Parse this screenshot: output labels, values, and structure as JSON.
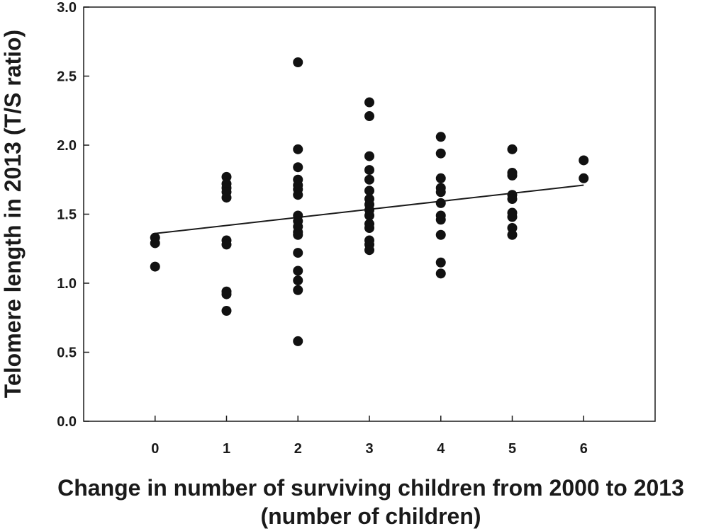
{
  "chart_data": {
    "type": "scatter",
    "title": "",
    "xlabel_line1": "Change in number of surviving children from 2000 to 2013",
    "xlabel_line2": "(number of children)",
    "ylabel": "Telomere length in 2013 (T/S ratio)",
    "xlim": [
      -1,
      7
    ],
    "ylim": [
      0.0,
      3.0
    ],
    "x_ticks": [
      0,
      1,
      2,
      3,
      4,
      5,
      6
    ],
    "x_tick_labels": [
      "0",
      "1",
      "2",
      "3",
      "4",
      "5",
      "6"
    ],
    "y_ticks": [
      0.0,
      0.5,
      1.0,
      1.5,
      2.0,
      2.5,
      3.0
    ],
    "y_tick_labels": [
      "0.0",
      "0.5",
      "1.0",
      "1.5",
      "2.0",
      "2.5",
      "3.0"
    ],
    "grid": false,
    "point_color": "#111111",
    "points": [
      {
        "x": 0,
        "y": 1.33
      },
      {
        "x": 0,
        "y": 1.29
      },
      {
        "x": 0,
        "y": 1.12
      },
      {
        "x": 1,
        "y": 1.77
      },
      {
        "x": 1,
        "y": 1.72
      },
      {
        "x": 1,
        "y": 1.69
      },
      {
        "x": 1,
        "y": 1.66
      },
      {
        "x": 1,
        "y": 1.62
      },
      {
        "x": 1,
        "y": 1.31
      },
      {
        "x": 1,
        "y": 1.28
      },
      {
        "x": 1,
        "y": 0.94
      },
      {
        "x": 1,
        "y": 0.92
      },
      {
        "x": 1,
        "y": 0.8
      },
      {
        "x": 2,
        "y": 2.6
      },
      {
        "x": 2,
        "y": 1.97
      },
      {
        "x": 2,
        "y": 1.84
      },
      {
        "x": 2,
        "y": 1.75
      },
      {
        "x": 2,
        "y": 1.71
      },
      {
        "x": 2,
        "y": 1.68
      },
      {
        "x": 2,
        "y": 1.64
      },
      {
        "x": 2,
        "y": 1.49
      },
      {
        "x": 2,
        "y": 1.45
      },
      {
        "x": 2,
        "y": 1.41
      },
      {
        "x": 2,
        "y": 1.37
      },
      {
        "x": 2,
        "y": 1.35
      },
      {
        "x": 2,
        "y": 1.22
      },
      {
        "x": 2,
        "y": 1.09
      },
      {
        "x": 2,
        "y": 1.02
      },
      {
        "x": 2,
        "y": 0.95
      },
      {
        "x": 2,
        "y": 0.58
      },
      {
        "x": 3,
        "y": 2.31
      },
      {
        "x": 3,
        "y": 2.21
      },
      {
        "x": 3,
        "y": 1.92
      },
      {
        "x": 3,
        "y": 1.82
      },
      {
        "x": 3,
        "y": 1.75
      },
      {
        "x": 3,
        "y": 1.67
      },
      {
        "x": 3,
        "y": 1.61
      },
      {
        "x": 3,
        "y": 1.57
      },
      {
        "x": 3,
        "y": 1.53
      },
      {
        "x": 3,
        "y": 1.49
      },
      {
        "x": 3,
        "y": 1.43
      },
      {
        "x": 3,
        "y": 1.4
      },
      {
        "x": 3,
        "y": 1.31
      },
      {
        "x": 3,
        "y": 1.28
      },
      {
        "x": 3,
        "y": 1.24
      },
      {
        "x": 4,
        "y": 2.06
      },
      {
        "x": 4,
        "y": 1.94
      },
      {
        "x": 4,
        "y": 1.76
      },
      {
        "x": 4,
        "y": 1.69
      },
      {
        "x": 4,
        "y": 1.66
      },
      {
        "x": 4,
        "y": 1.58
      },
      {
        "x": 4,
        "y": 1.49
      },
      {
        "x": 4,
        "y": 1.46
      },
      {
        "x": 4,
        "y": 1.35
      },
      {
        "x": 4,
        "y": 1.15
      },
      {
        "x": 4,
        "y": 1.07
      },
      {
        "x": 5,
        "y": 1.97
      },
      {
        "x": 5,
        "y": 1.8
      },
      {
        "x": 5,
        "y": 1.78
      },
      {
        "x": 5,
        "y": 1.64
      },
      {
        "x": 5,
        "y": 1.61
      },
      {
        "x": 5,
        "y": 1.51
      },
      {
        "x": 5,
        "y": 1.48
      },
      {
        "x": 5,
        "y": 1.4
      },
      {
        "x": 5,
        "y": 1.35
      },
      {
        "x": 6,
        "y": 1.89
      },
      {
        "x": 6,
        "y": 1.76
      }
    ],
    "regression_line": {
      "x": [
        0,
        6
      ],
      "y": [
        1.36,
        1.71
      ]
    }
  }
}
